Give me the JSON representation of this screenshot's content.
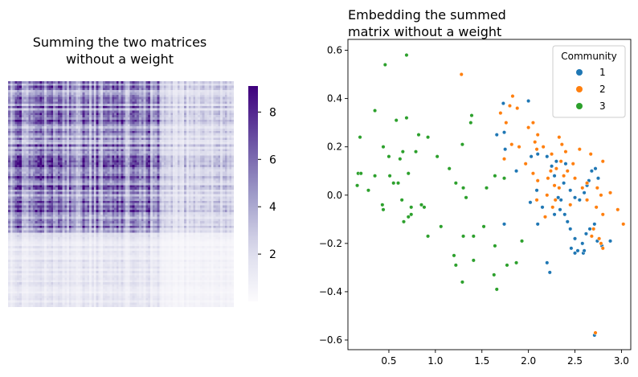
{
  "chart_data": [
    {
      "type": "heatmap",
      "title_lines": [
        "Summing the two matrices",
        "without a weight"
      ],
      "xlabel": "",
      "ylabel": "",
      "colormap": "Purples",
      "colorbar": {
        "min": 0,
        "max": 9.1,
        "ticks": [
          2,
          4,
          6,
          8
        ],
        "tick_labels": [
          "2",
          "4",
          "6",
          "8"
        ]
      },
      "block_structure": {
        "split_fraction_x": 0.68,
        "split_fraction_y": 0.67,
        "top_left_typical": 5.6,
        "top_right_typical": 2.6,
        "bottom_left_typical": 1.5,
        "bottom_right_typical": 0.6
      }
    },
    {
      "type": "scatter",
      "title_lines": [
        "Embedding the summed",
        "matrix without a weight"
      ],
      "xlabel": "",
      "ylabel": "",
      "xlim": [
        0.06,
        3.1
      ],
      "ylim": [
        -0.64,
        0.645
      ],
      "xticks": [
        0.5,
        1.0,
        1.5,
        2.0,
        2.5,
        3.0
      ],
      "xtick_labels": [
        "0.5",
        "1.0",
        "1.5",
        "2.0",
        "2.5",
        "3.0"
      ],
      "yticks": [
        -0.6,
        -0.4,
        -0.2,
        0.0,
        0.2,
        0.4,
        0.6
      ],
      "ytick_labels": [
        "−0.6",
        "−0.4",
        "−0.2",
        "0.0",
        "0.2",
        "0.4",
        "0.6"
      ],
      "grid": false,
      "legend": {
        "title": "Community",
        "placement": "top-right"
      },
      "series": [
        {
          "name": "1",
          "color": "#1f77b4",
          "points": [
            [
              1.73,
              0.38
            ],
            [
              2.0,
              0.39
            ],
            [
              1.66,
              0.25
            ],
            [
              1.74,
              0.26
            ],
            [
              1.75,
              0.19
            ],
            [
              1.87,
              0.1
            ],
            [
              2.03,
              0.16
            ],
            [
              2.1,
              0.17
            ],
            [
              2.2,
              0.16
            ],
            [
              2.25,
              0.12
            ],
            [
              2.28,
              0.08
            ],
            [
              2.33,
              0.03
            ],
            [
              2.3,
              0.14
            ],
            [
              2.4,
              0.13
            ],
            [
              2.38,
              0.05
            ],
            [
              2.45,
              0.02
            ],
            [
              2.5,
              -0.01
            ],
            [
              2.55,
              -0.02
            ],
            [
              2.6,
              0.01
            ],
            [
              2.63,
              0.04
            ],
            [
              2.65,
              0.06
            ],
            [
              2.68,
              0.1
            ],
            [
              2.72,
              0.11
            ],
            [
              2.75,
              0.07
            ],
            [
              2.32,
              -0.01
            ],
            [
              2.34,
              -0.06
            ],
            [
              2.39,
              -0.08
            ],
            [
              2.42,
              -0.11
            ],
            [
              2.45,
              -0.14
            ],
            [
              2.5,
              -0.18
            ],
            [
              2.46,
              -0.22
            ],
            [
              2.5,
              -0.24
            ],
            [
              2.53,
              -0.23
            ],
            [
              2.58,
              -0.2
            ],
            [
              2.62,
              -0.16
            ],
            [
              2.66,
              -0.14
            ],
            [
              2.71,
              -0.12
            ],
            [
              2.74,
              -0.19
            ],
            [
              2.79,
              -0.21
            ],
            [
              2.88,
              -0.19
            ],
            [
              2.59,
              -0.24
            ],
            [
              2.2,
              -0.28
            ],
            [
              2.23,
              -0.32
            ],
            [
              2.6,
              -0.23
            ],
            [
              2.1,
              -0.12
            ],
            [
              2.15,
              -0.05
            ],
            [
              2.02,
              -0.03
            ],
            [
              2.09,
              0.02
            ],
            [
              1.74,
              -0.12
            ],
            [
              2.71,
              -0.58
            ],
            [
              2.28,
              -0.08
            ],
            [
              2.35,
              -0.02
            ]
          ]
        },
        {
          "name": "2",
          "color": "#ff7f0e",
          "points": [
            [
              1.28,
              0.5
            ],
            [
              1.83,
              0.41
            ],
            [
              1.8,
              0.37
            ],
            [
              1.88,
              0.36
            ],
            [
              1.7,
              0.34
            ],
            [
              1.76,
              0.3
            ],
            [
              2.0,
              0.28
            ],
            [
              2.05,
              0.3
            ],
            [
              2.1,
              0.25
            ],
            [
              1.82,
              0.21
            ],
            [
              1.9,
              0.2
            ],
            [
              2.07,
              0.22
            ],
            [
              2.09,
              0.19
            ],
            [
              2.16,
              0.2
            ],
            [
              2.33,
              0.24
            ],
            [
              2.36,
              0.21
            ],
            [
              2.25,
              0.17
            ],
            [
              2.4,
              0.18
            ],
            [
              2.55,
              0.19
            ],
            [
              2.67,
              0.17
            ],
            [
              2.8,
              0.14
            ],
            [
              2.35,
              0.14
            ],
            [
              2.48,
              0.13
            ],
            [
              2.3,
              0.11
            ],
            [
              2.24,
              0.1
            ],
            [
              2.21,
              0.07
            ],
            [
              2.05,
              0.09
            ],
            [
              2.1,
              0.06
            ],
            [
              2.28,
              0.04
            ],
            [
              2.33,
              0.03
            ],
            [
              2.38,
              0.08
            ],
            [
              2.5,
              0.07
            ],
            [
              2.63,
              0.05
            ],
            [
              2.74,
              0.03
            ],
            [
              2.78,
              0.0
            ],
            [
              2.88,
              0.01
            ],
            [
              2.96,
              -0.06
            ],
            [
              3.02,
              -0.12
            ],
            [
              2.2,
              0.0
            ],
            [
              2.09,
              -0.02
            ],
            [
              2.26,
              -0.05
            ],
            [
              2.45,
              -0.04
            ],
            [
              2.63,
              -0.02
            ],
            [
              2.73,
              -0.05
            ],
            [
              2.8,
              -0.08
            ],
            [
              2.7,
              -0.14
            ],
            [
              2.68,
              -0.17
            ],
            [
              2.78,
              -0.2
            ],
            [
              2.8,
              -0.22
            ],
            [
              2.76,
              -0.18
            ],
            [
              1.74,
              0.15
            ],
            [
              2.18,
              -0.09
            ],
            [
              2.72,
              -0.57
            ],
            [
              1.97,
              0.13
            ],
            [
              2.42,
              0.1
            ],
            [
              2.58,
              0.03
            ],
            [
              2.29,
              -0.02
            ]
          ]
        },
        {
          "name": "3",
          "color": "#2ca02c",
          "points": [
            [
              0.46,
              0.54
            ],
            [
              0.69,
              0.58
            ],
            [
              0.35,
              0.35
            ],
            [
              0.58,
              0.31
            ],
            [
              0.69,
              0.32
            ],
            [
              0.19,
              0.24
            ],
            [
              0.44,
              0.2
            ],
            [
              0.65,
              0.18
            ],
            [
              0.82,
              0.25
            ],
            [
              0.92,
              0.24
            ],
            [
              0.5,
              0.16
            ],
            [
              0.62,
              0.15
            ],
            [
              0.79,
              0.18
            ],
            [
              1.02,
              0.16
            ],
            [
              1.15,
              0.11
            ],
            [
              1.39,
              0.33
            ],
            [
              1.38,
              0.3
            ],
            [
              1.29,
              0.21
            ],
            [
              0.17,
              0.09
            ],
            [
              0.2,
              0.09
            ],
            [
              0.35,
              0.08
            ],
            [
              0.51,
              0.08
            ],
            [
              0.71,
              0.09
            ],
            [
              0.16,
              0.04
            ],
            [
              0.28,
              0.02
            ],
            [
              0.55,
              0.05
            ],
            [
              0.6,
              0.05
            ],
            [
              0.64,
              -0.02
            ],
            [
              1.22,
              0.05
            ],
            [
              1.3,
              0.03
            ],
            [
              1.33,
              -0.01
            ],
            [
              1.55,
              0.03
            ],
            [
              1.64,
              0.08
            ],
            [
              1.74,
              0.07
            ],
            [
              0.43,
              -0.04
            ],
            [
              0.44,
              -0.06
            ],
            [
              0.74,
              -0.05
            ],
            [
              0.85,
              -0.04
            ],
            [
              0.88,
              -0.05
            ],
            [
              0.71,
              -0.09
            ],
            [
              0.66,
              -0.11
            ],
            [
              0.74,
              -0.08
            ],
            [
              0.92,
              -0.17
            ],
            [
              1.06,
              -0.13
            ],
            [
              1.3,
              -0.17
            ],
            [
              1.41,
              -0.17
            ],
            [
              1.2,
              -0.25
            ],
            [
              1.22,
              -0.29
            ],
            [
              1.41,
              -0.27
            ],
            [
              1.64,
              -0.21
            ],
            [
              1.63,
              -0.33
            ],
            [
              1.77,
              -0.29
            ],
            [
              1.93,
              -0.19
            ],
            [
              1.87,
              -0.28
            ],
            [
              1.29,
              -0.36
            ],
            [
              1.66,
              -0.39
            ],
            [
              1.52,
              -0.13
            ]
          ]
        }
      ]
    }
  ]
}
